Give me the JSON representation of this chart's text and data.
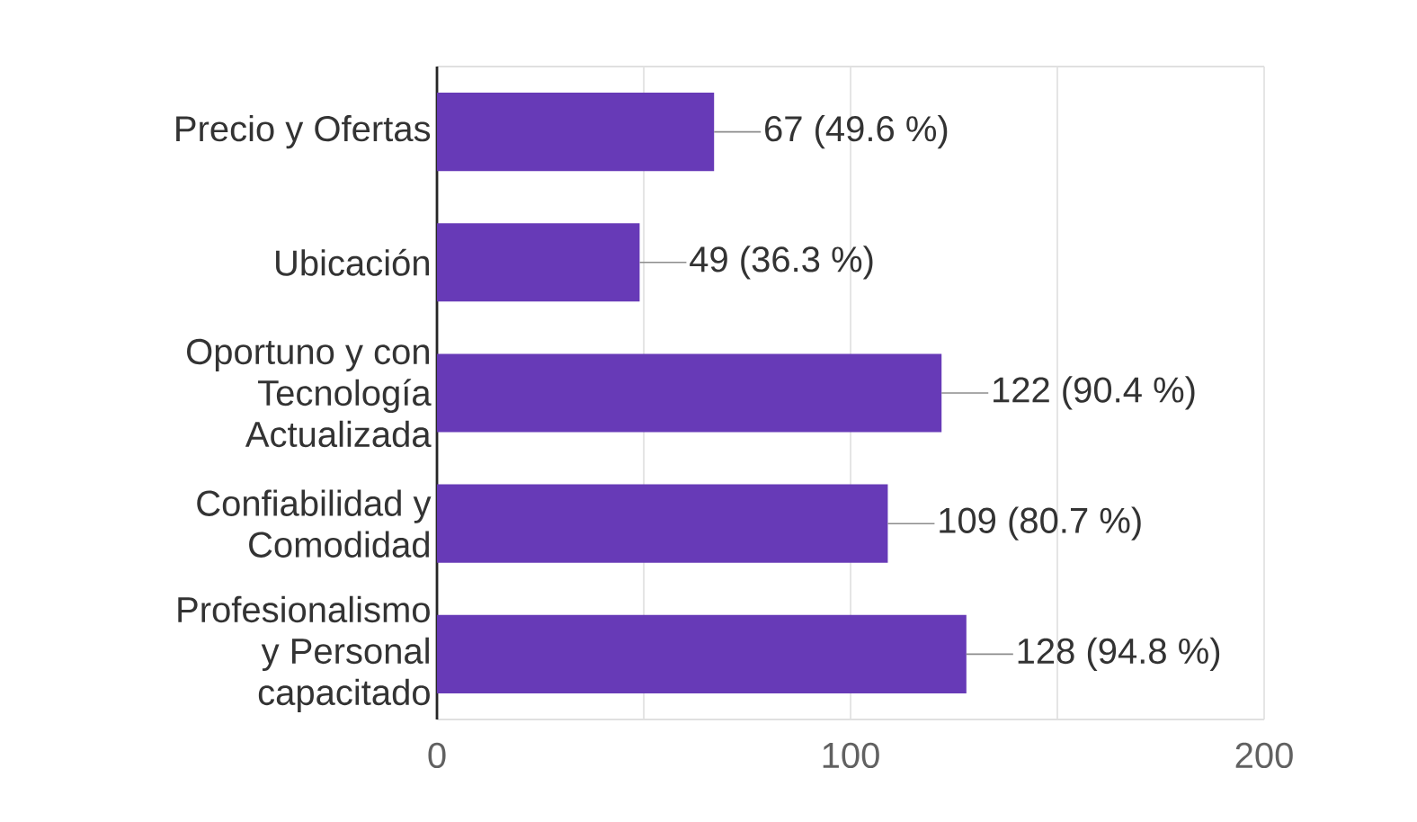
{
  "chart_data": {
    "type": "bar",
    "orientation": "horizontal",
    "categories": [
      "Precio y Ofertas",
      "Ubicación",
      "Oportuno y con Tecnología Actualizada",
      "Confiabilidad y Comodidad",
      "Profesionalismo y Personal capacitado"
    ],
    "values": [
      67,
      49,
      122,
      109,
      128
    ],
    "value_labels": [
      "67 (49.6 %)",
      "49 (36.3 %)",
      "122 (90.4 %)",
      "109 (80.7 %)",
      "128 (94.8 %)"
    ],
    "color": "#673ab7",
    "xlim": [
      0,
      200
    ],
    "xticks": [
      0,
      {
        "value": 50,
        "label": null
      },
      100,
      {
        "value": 150,
        "label": null
      },
      200
    ],
    "grid": "x"
  }
}
